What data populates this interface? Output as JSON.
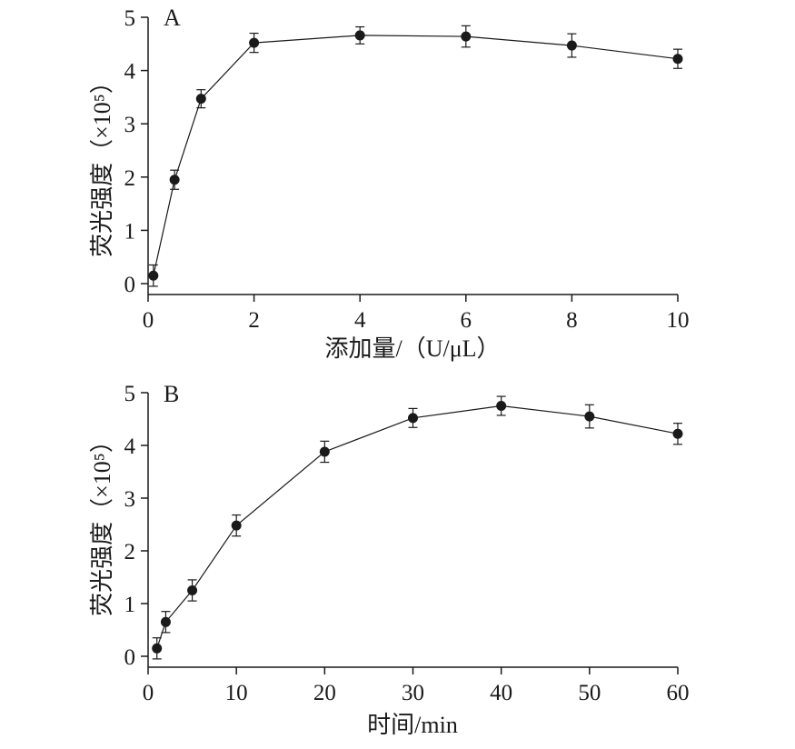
{
  "chart_data": [
    {
      "type": "line",
      "panel_label": "A",
      "xlabel": "添加量/（U/μL）",
      "ylabel": "荧光强度（×10⁵）",
      "xlim": [
        0,
        10
      ],
      "ylim": [
        0,
        5
      ],
      "xticks": [
        0,
        2,
        4,
        6,
        8,
        10
      ],
      "yticks": [
        0,
        1,
        2,
        3,
        4,
        5
      ],
      "grid": false,
      "series": [
        {
          "x": [
            0.1,
            0.5,
            1,
            2,
            4,
            6,
            8,
            10
          ],
          "y": [
            0.15,
            1.95,
            3.47,
            4.52,
            4.66,
            4.64,
            4.47,
            4.22
          ],
          "error": [
            0.2,
            0.18,
            0.17,
            0.18,
            0.16,
            0.2,
            0.22,
            0.18
          ]
        }
      ]
    },
    {
      "type": "line",
      "panel_label": "B",
      "xlabel": "时间/min",
      "ylabel": "荧光强度（×10⁵）",
      "xlim": [
        0,
        60
      ],
      "ylim": [
        0,
        5
      ],
      "xticks": [
        0,
        10,
        20,
        30,
        40,
        50,
        60
      ],
      "yticks": [
        0,
        1,
        2,
        3,
        4,
        5
      ],
      "grid": false,
      "series": [
        {
          "x": [
            1,
            2,
            5,
            10,
            20,
            30,
            40,
            50,
            60
          ],
          "y": [
            0.15,
            0.65,
            1.25,
            2.48,
            3.88,
            4.52,
            4.75,
            4.55,
            4.22
          ],
          "error": [
            0.2,
            0.2,
            0.2,
            0.2,
            0.2,
            0.18,
            0.18,
            0.22,
            0.2
          ]
        }
      ]
    }
  ]
}
